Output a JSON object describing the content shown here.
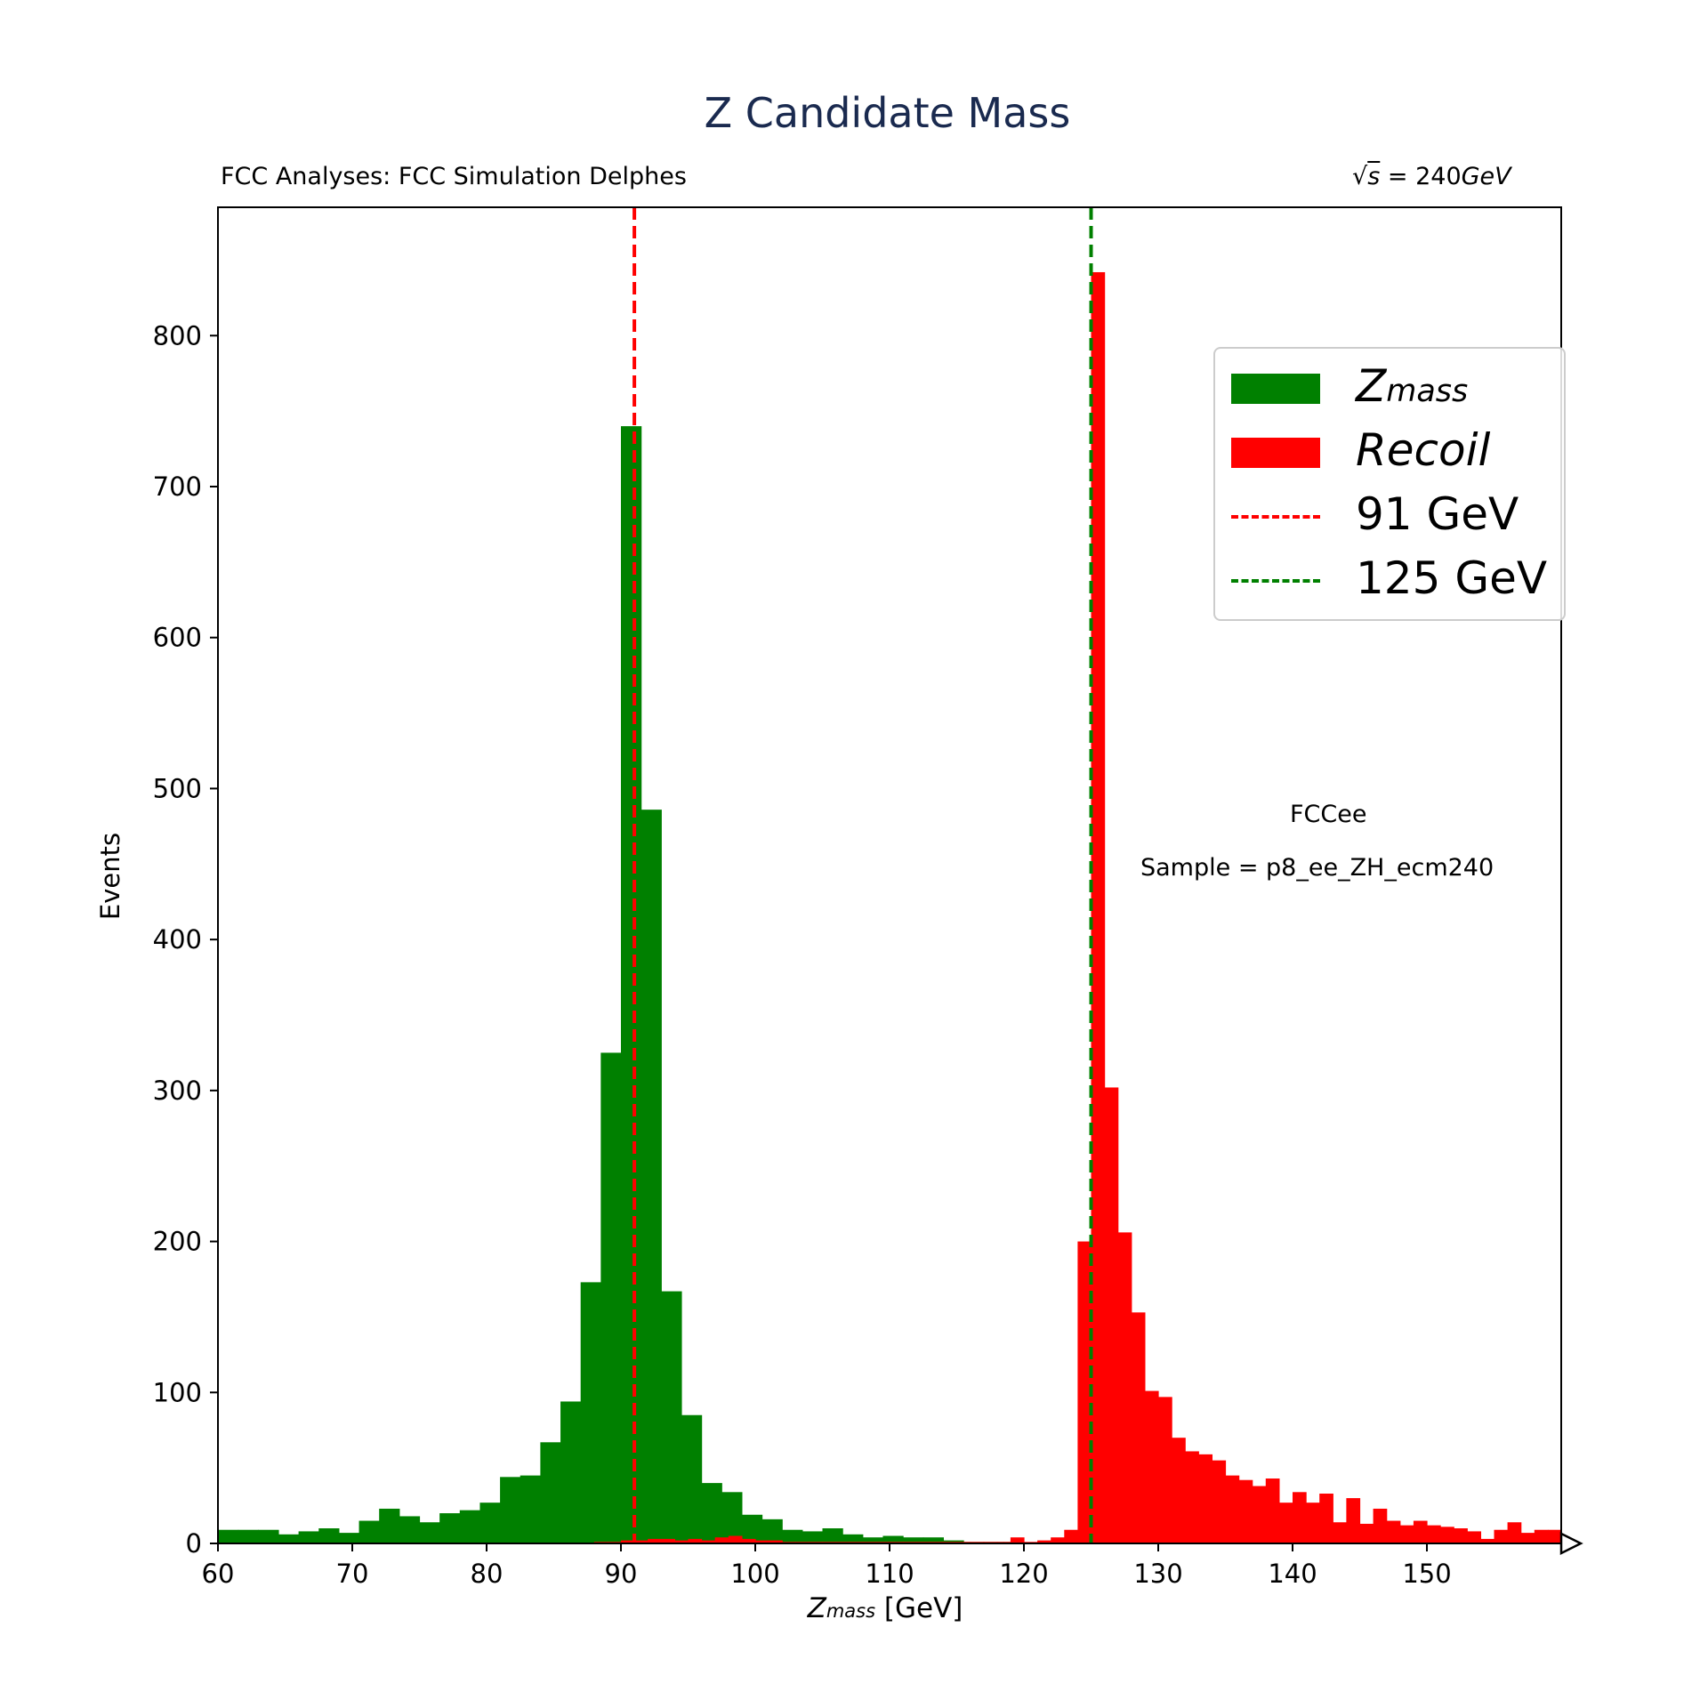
{
  "title": "Z Candidate Mass",
  "header_left": "FCC Analyses: FCC Simulation Delphes",
  "header_right": {
    "sqrt": "√",
    "s": "s",
    "rest": " = 240",
    "unit": "GeV"
  },
  "annotations": {
    "detector": "FCCee",
    "sample": "Sample = p8_ee_ZH_ecm240"
  },
  "legend": [
    {
      "label_main": "Z",
      "label_sub": "mass",
      "kind": "bar",
      "color": "#008000"
    },
    {
      "label_main": "Recoil",
      "label_sub": "",
      "kind": "bar",
      "color": "#ff0000"
    },
    {
      "label_main": "91 GeV",
      "label_sub": "",
      "kind": "line",
      "color": "#ff0000"
    },
    {
      "label_main": "125 GeV",
      "label_sub": "",
      "kind": "line",
      "color": "#008000"
    }
  ],
  "chart_data": {
    "type": "bar",
    "xlabel": {
      "main": "Z",
      "sub": "mass",
      "rest": " [GeV]"
    },
    "ylabel": "Events",
    "xlim": [
      60,
      160
    ],
    "ylim": [
      0,
      885
    ],
    "xticks": [
      60,
      70,
      80,
      90,
      100,
      110,
      120,
      130,
      140,
      150
    ],
    "yticks": [
      0,
      100,
      200,
      300,
      400,
      500,
      600,
      700,
      800
    ],
    "grid": false,
    "legend_position": "upper-right",
    "series": [
      {
        "name": "Z_mass",
        "color": "#008000",
        "bin_start": 60,
        "bin_width": 1.5,
        "values": [
          9,
          9,
          9,
          6,
          8,
          10,
          7,
          15,
          23,
          18,
          14,
          20,
          22,
          27,
          44,
          45,
          67,
          94,
          173,
          325,
          740,
          486,
          167,
          85,
          40,
          34,
          19,
          16,
          9,
          8,
          10,
          6,
          4,
          5,
          4,
          4,
          2,
          1,
          1,
          1,
          0,
          0,
          0,
          0,
          0,
          0,
          0,
          0,
          0,
          0,
          0,
          0,
          0,
          0,
          0,
          0,
          0,
          0,
          0,
          0,
          0,
          0,
          0,
          0,
          0,
          0,
          0
        ]
      },
      {
        "name": "Recoil",
        "color": "#ff0000",
        "bin_start": 60,
        "bin_width": 1,
        "values": [
          0,
          0,
          0,
          0,
          0,
          0,
          0,
          0,
          0,
          0,
          0,
          0,
          0,
          0,
          0,
          0,
          0,
          0,
          0,
          0,
          0,
          0,
          0,
          0,
          0,
          0,
          0,
          0,
          1,
          1,
          2,
          2,
          3,
          3,
          2,
          3,
          2,
          4,
          5,
          3,
          2,
          2,
          1,
          1,
          1,
          1,
          1,
          1,
          1,
          1,
          1,
          1,
          1,
          1,
          1,
          1,
          1,
          1,
          1,
          4,
          1,
          2,
          4,
          9,
          200,
          842,
          302,
          206,
          153,
          101,
          97,
          70,
          61,
          59,
          55,
          45,
          42,
          38,
          43,
          27,
          34,
          27,
          33,
          14,
          30,
          13,
          23,
          15,
          12,
          15,
          12,
          11,
          10,
          8,
          3,
          9,
          14,
          7,
          9,
          9,
          11
        ]
      }
    ],
    "vlines": [
      {
        "x": 91,
        "color": "#ff0000",
        "label": "91 GeV"
      },
      {
        "x": 125,
        "color": "#008000",
        "label": "125 GeV"
      }
    ]
  }
}
